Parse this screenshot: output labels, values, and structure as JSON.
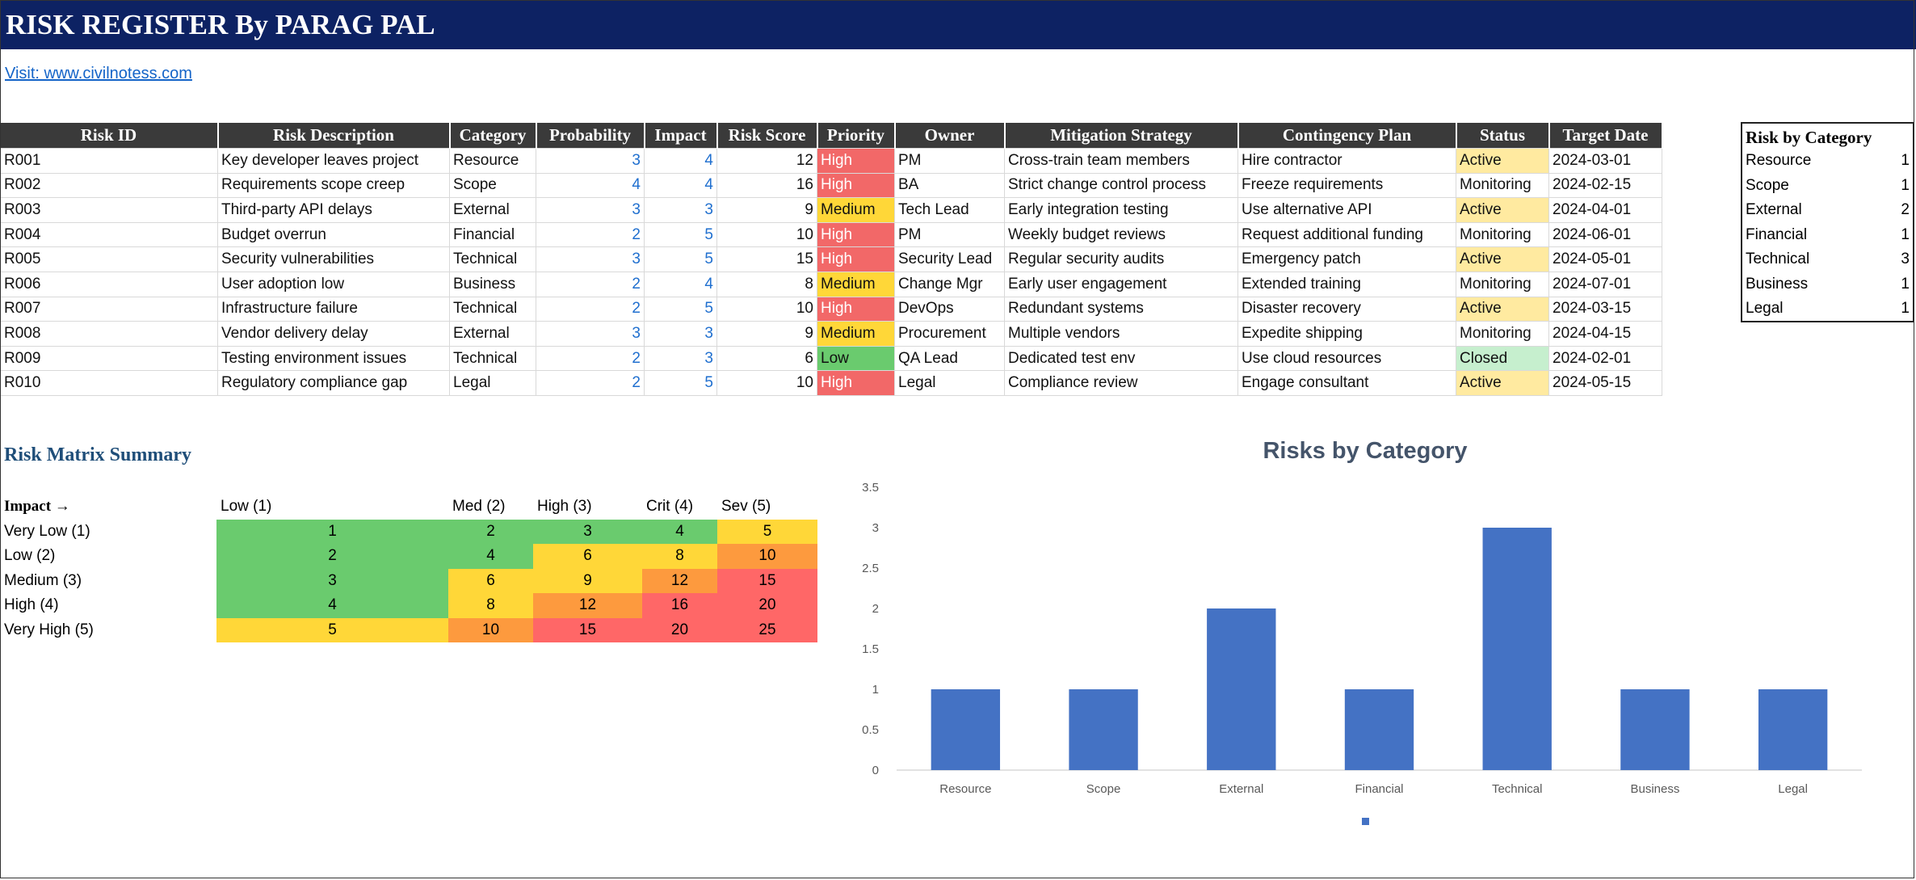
{
  "title": "RISK REGISTER By PARAG PAL",
  "visit_link": "Visit: www.civilnotess.com",
  "register": {
    "headers": [
      "Risk ID",
      "Risk Description",
      "Category",
      "Probability",
      "Impact",
      "Risk Score",
      "Priority",
      "Owner",
      "Mitigation Strategy",
      "Contingency Plan",
      "Status",
      "Target Date"
    ],
    "rows": [
      [
        "R001",
        "Key developer leaves project",
        "Resource",
        "3",
        "4",
        "12",
        "High",
        "PM",
        "Cross-train team members",
        "Hire contractor",
        "Active",
        "2024-03-01"
      ],
      [
        "R002",
        "Requirements scope creep",
        "Scope",
        "4",
        "4",
        "16",
        "High",
        "BA",
        "Strict change control process",
        "Freeze requirements",
        "Monitoring",
        "2024-02-15"
      ],
      [
        "R003",
        "Third-party API delays",
        "External",
        "3",
        "3",
        "9",
        "Medium",
        "Tech Lead",
        "Early integration testing",
        "Use alternative API",
        "Active",
        "2024-04-01"
      ],
      [
        "R004",
        "Budget overrun",
        "Financial",
        "2",
        "5",
        "10",
        "High",
        "PM",
        "Weekly budget reviews",
        "Request additional funding",
        "Monitoring",
        "2024-06-01"
      ],
      [
        "R005",
        "Security vulnerabilities",
        "Technical",
        "3",
        "5",
        "15",
        "High",
        "Security Lead",
        "Regular security audits",
        "Emergency patch",
        "Active",
        "2024-05-01"
      ],
      [
        "R006",
        "User adoption low",
        "Business",
        "2",
        "4",
        "8",
        "Medium",
        "Change Mgr",
        "Early user engagement",
        "Extended training",
        "Monitoring",
        "2024-07-01"
      ],
      [
        "R007",
        "Infrastructure failure",
        "Technical",
        "2",
        "5",
        "10",
        "High",
        "DevOps",
        "Redundant systems",
        "Disaster recovery",
        "Active",
        "2024-03-15"
      ],
      [
        "R008",
        "Vendor delivery delay",
        "External",
        "3",
        "3",
        "9",
        "Medium",
        "Procurement",
        "Multiple vendors",
        "Expedite shipping",
        "Monitoring",
        "2024-04-15"
      ],
      [
        "R009",
        "Testing environment issues",
        "Technical",
        "2",
        "3",
        "6",
        "Low",
        "QA Lead",
        "Dedicated test env",
        "Use cloud resources",
        "Closed",
        "2024-02-01"
      ],
      [
        "R010",
        "Regulatory compliance gap",
        "Legal",
        "2",
        "5",
        "10",
        "High",
        "Legal",
        "Compliance review",
        "Engage consultant",
        "Active",
        "2024-05-15"
      ]
    ]
  },
  "category_summary": {
    "title": "Risk by Category",
    "items": [
      {
        "label": "Resource",
        "count": "1"
      },
      {
        "label": "Scope",
        "count": "1"
      },
      {
        "label": "External",
        "count": "2"
      },
      {
        "label": "Financial",
        "count": "1"
      },
      {
        "label": "Technical",
        "count": "3"
      },
      {
        "label": "Business",
        "count": "1"
      },
      {
        "label": "Legal",
        "count": "1"
      }
    ]
  },
  "matrix": {
    "title": "Risk Matrix Summary",
    "corner_label": "Impact →",
    "col_labels": [
      "Low (1)",
      "Med (2)",
      "High (3)",
      "Crit (4)",
      "Sev (5)"
    ],
    "row_labels": [
      "Very Low (1)",
      "Low (2)",
      "Medium (3)",
      "High (4)",
      "Very High (5)"
    ],
    "values": [
      [
        "1",
        "2",
        "3",
        "4",
        "5"
      ],
      [
        "2",
        "4",
        "6",
        "8",
        "10"
      ],
      [
        "3",
        "6",
        "9",
        "12",
        "15"
      ],
      [
        "4",
        "8",
        "12",
        "16",
        "20"
      ],
      [
        "5",
        "10",
        "15",
        "20",
        "25"
      ]
    ],
    "colors": {
      "green": "#6acb6e",
      "yellow": "#ffd738",
      "orange": "#fd9a3e",
      "red": "#ff6767"
    }
  },
  "chart_data": {
    "type": "bar",
    "title": "Risks by Category",
    "categories": [
      "Resource",
      "Scope",
      "External",
      "Financial",
      "Technical",
      "Business",
      "Legal"
    ],
    "values": [
      1,
      1,
      2,
      1,
      3,
      1,
      1
    ],
    "ylim": [
      0,
      3.5
    ],
    "yticks": [
      "0",
      "0.5",
      "1",
      "1.5",
      "2",
      "2.5",
      "3",
      "3.5"
    ],
    "grid": false,
    "legend": "bottom",
    "color": "#4472c4"
  }
}
